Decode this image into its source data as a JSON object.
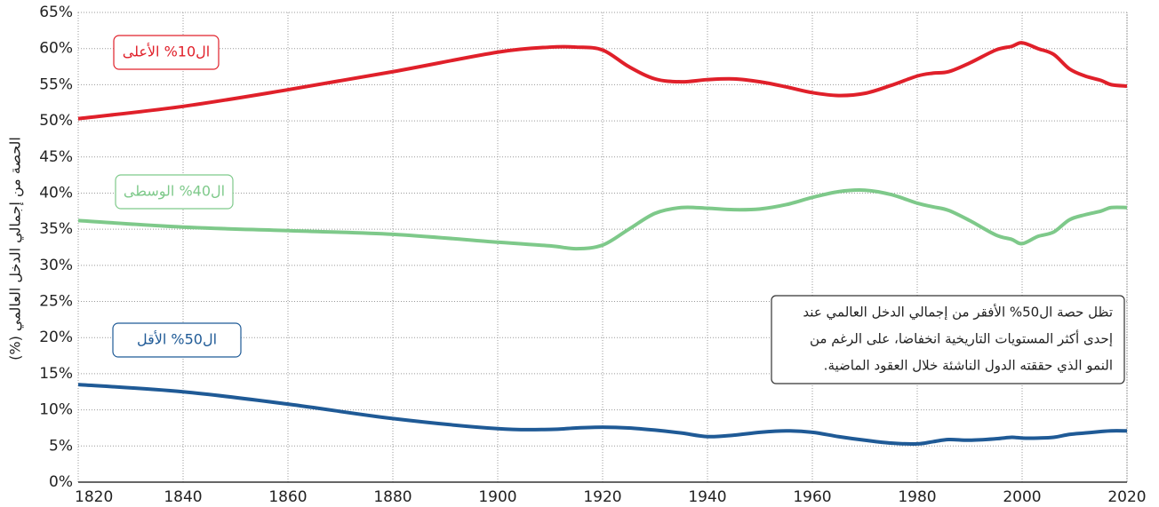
{
  "chart_data": {
    "type": "line",
    "y_label": "الحصة من إجمالي الدخل العالمي (%)",
    "annotation": [
      "تظل حصة ال50% الأفقر من إجمالي الدخل العالمي عند",
      "إحدى أكثر المستويات التاريخية انخفاضا، على الرغم من",
      "النمو الذي حققته الدول الناشئة خلال العقود الماضية."
    ],
    "x": [
      1820,
      1840,
      1860,
      1880,
      1900,
      1910,
      1915,
      1920,
      1925,
      1930,
      1935,
      1940,
      1945,
      1950,
      1955,
      1960,
      1965,
      1970,
      1975,
      1980,
      1983,
      1986,
      1990,
      1995,
      1998,
      2000,
      2003,
      2006,
      2009,
      2012,
      2015,
      2017,
      2020
    ],
    "series": [
      {
        "name": "ال10% الأعلى",
        "color": "#e0202a",
        "values": [
          50.3,
          52,
          54.3,
          56.8,
          59.5,
          60.2,
          60.2,
          59.8,
          57.5,
          55.8,
          55.4,
          55.7,
          55.8,
          55.4,
          54.7,
          53.9,
          53.5,
          53.8,
          54.9,
          56.2,
          56.6,
          56.8,
          58,
          59.8,
          60.3,
          60.8,
          60,
          59.2,
          57.2,
          56.2,
          55.6,
          55,
          54.8
        ]
      },
      {
        "name": "ال40% الوسطى",
        "color": "#7ec98a",
        "values": [
          36.2,
          35.3,
          34.8,
          34.3,
          33.2,
          32.7,
          32.3,
          32.8,
          35,
          37.2,
          38,
          37.9,
          37.7,
          37.8,
          38.4,
          39.4,
          40.2,
          40.4,
          39.8,
          38.6,
          38.1,
          37.6,
          36.2,
          34.2,
          33.6,
          33,
          34,
          34.6,
          36.3,
          37,
          37.5,
          38,
          38
        ]
      },
      {
        "name": "ال50% الأقل",
        "color": "#1f5a96",
        "values": [
          13.5,
          12.5,
          10.8,
          8.8,
          7.4,
          7.3,
          7.5,
          7.6,
          7.5,
          7.2,
          6.8,
          6.3,
          6.5,
          6.9,
          7.1,
          6.9,
          6.3,
          5.8,
          5.4,
          5.3,
          5.6,
          5.9,
          5.8,
          6.0,
          6.2,
          6.1,
          6.1,
          6.2,
          6.6,
          6.8,
          7.0,
          7.1,
          7.1
        ]
      }
    ],
    "xlim": [
      1820,
      2020
    ],
    "xticks": [
      1820,
      1840,
      1860,
      1880,
      1900,
      1920,
      1940,
      1960,
      1980,
      2000,
      2020
    ],
    "ylim": [
      0,
      65
    ],
    "yticks": [
      {
        "value": 0,
        "label": "0%"
      },
      {
        "value": 5,
        "label": "5%"
      },
      {
        "value": 10,
        "label": "10%"
      },
      {
        "value": 15,
        "label": "15%"
      },
      {
        "value": 20,
        "label": "20%"
      },
      {
        "value": 25,
        "label": "25%"
      },
      {
        "value": 30,
        "label": "30%"
      },
      {
        "value": 35,
        "label": "35%"
      },
      {
        "value": 40,
        "label": "40%"
      },
      {
        "value": 45,
        "label": "45%"
      },
      {
        "value": 50,
        "label": "50%"
      },
      {
        "value": 55,
        "label": "55%"
      },
      {
        "value": 60,
        "label": "60%"
      },
      {
        "value": 65,
        "label": "65%"
      }
    ],
    "grid": true
  }
}
